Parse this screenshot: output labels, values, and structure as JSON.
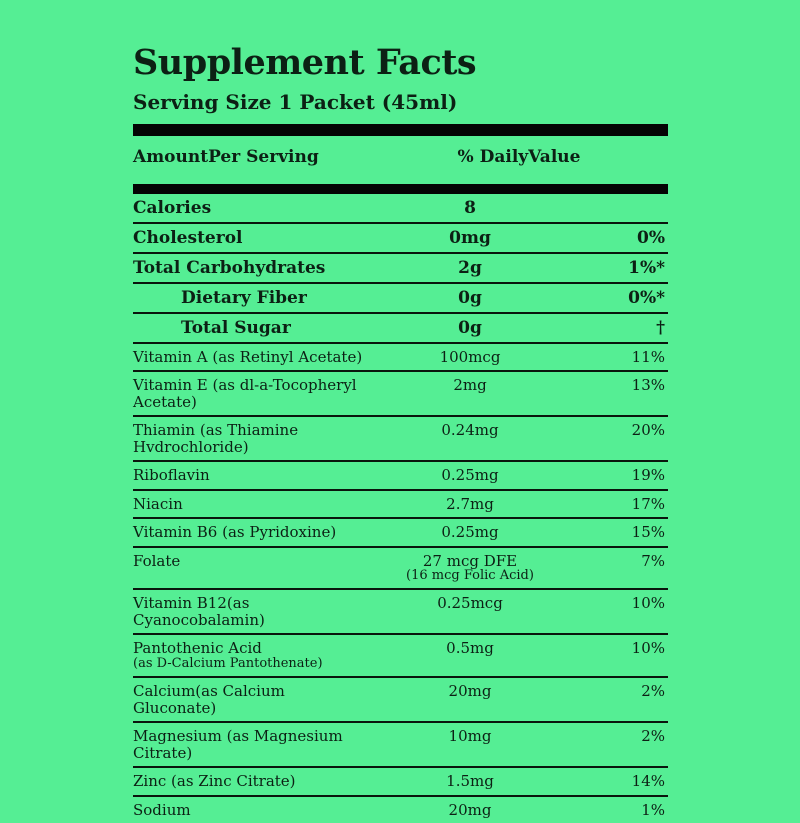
{
  "label": {
    "title": "Supplement Facts",
    "serving_size": "Serving Size 1 Packet (45ml)",
    "header": {
      "amount_col": "AmountPer Serving",
      "dv_col": "% DailyValue"
    },
    "macro_rows": [
      {
        "name": "Calories",
        "amount": "8",
        "dv": "",
        "indent": false
      },
      {
        "name": "Cholesterol",
        "amount": "0mg",
        "dv": "0%",
        "indent": false
      },
      {
        "name": "Total Carbohydrates",
        "amount": "2g",
        "dv": "1%*",
        "indent": false
      },
      {
        "name": "Dietary Fiber",
        "amount": "0g",
        "dv": "0%*",
        "indent": true
      },
      {
        "name": "Total Sugar",
        "amount": "0g",
        "dv": "†",
        "indent": true
      }
    ],
    "micro_rows": [
      {
        "name": "Vitamin A (as Retinyl Acetate)",
        "amount": "100mcg",
        "dv": "11%"
      },
      {
        "name": "Vitamin E (as dl-a-Tocopheryl Acetate)",
        "amount": "2mg",
        "dv": "13%"
      },
      {
        "name": "Thiamin (as Thiamine Hvdrochloride)",
        "amount": "0.24mg",
        "dv": "20%"
      },
      {
        "name": "Riboflavin",
        "amount": "0.25mg",
        "dv": "19%"
      },
      {
        "name": "Niacin",
        "amount": "2.7mg",
        "dv": "17%"
      },
      {
        "name": "Vitamin B6 (as Pyridoxine)",
        "amount": "0.25mg",
        "dv": "15%"
      },
      {
        "name": "Folate",
        "amount": "27 mcg DFE",
        "amount2": "(16 mcg Folic Acid)",
        "dv": "7%"
      },
      {
        "name": "Vitamin B12(as Cyanocobalamin)",
        "amount": "0.25mcg",
        "dv": "10%"
      },
      {
        "name": "Pantothenic Acid",
        "name2": "(as D-Calcium Pantothenate)",
        "amount": "0.5mg",
        "dv": "10%"
      },
      {
        "name": "Calcium(as Calcium Gluconate)",
        "amount": "20mg",
        "dv": "2%"
      },
      {
        "name": "Magnesium (as Magnesium Citrate)",
        "amount": "10mg",
        "dv": "2%"
      },
      {
        "name": "Zinc (as Zinc Citrate)",
        "amount": "1.5mg",
        "dv": "14%"
      },
      {
        "name": "Sodium",
        "amount": "20mg",
        "dv": "1%"
      }
    ],
    "colors": {
      "background": "#55ee94",
      "text": "#0c2014",
      "bar": "#040404"
    }
  }
}
